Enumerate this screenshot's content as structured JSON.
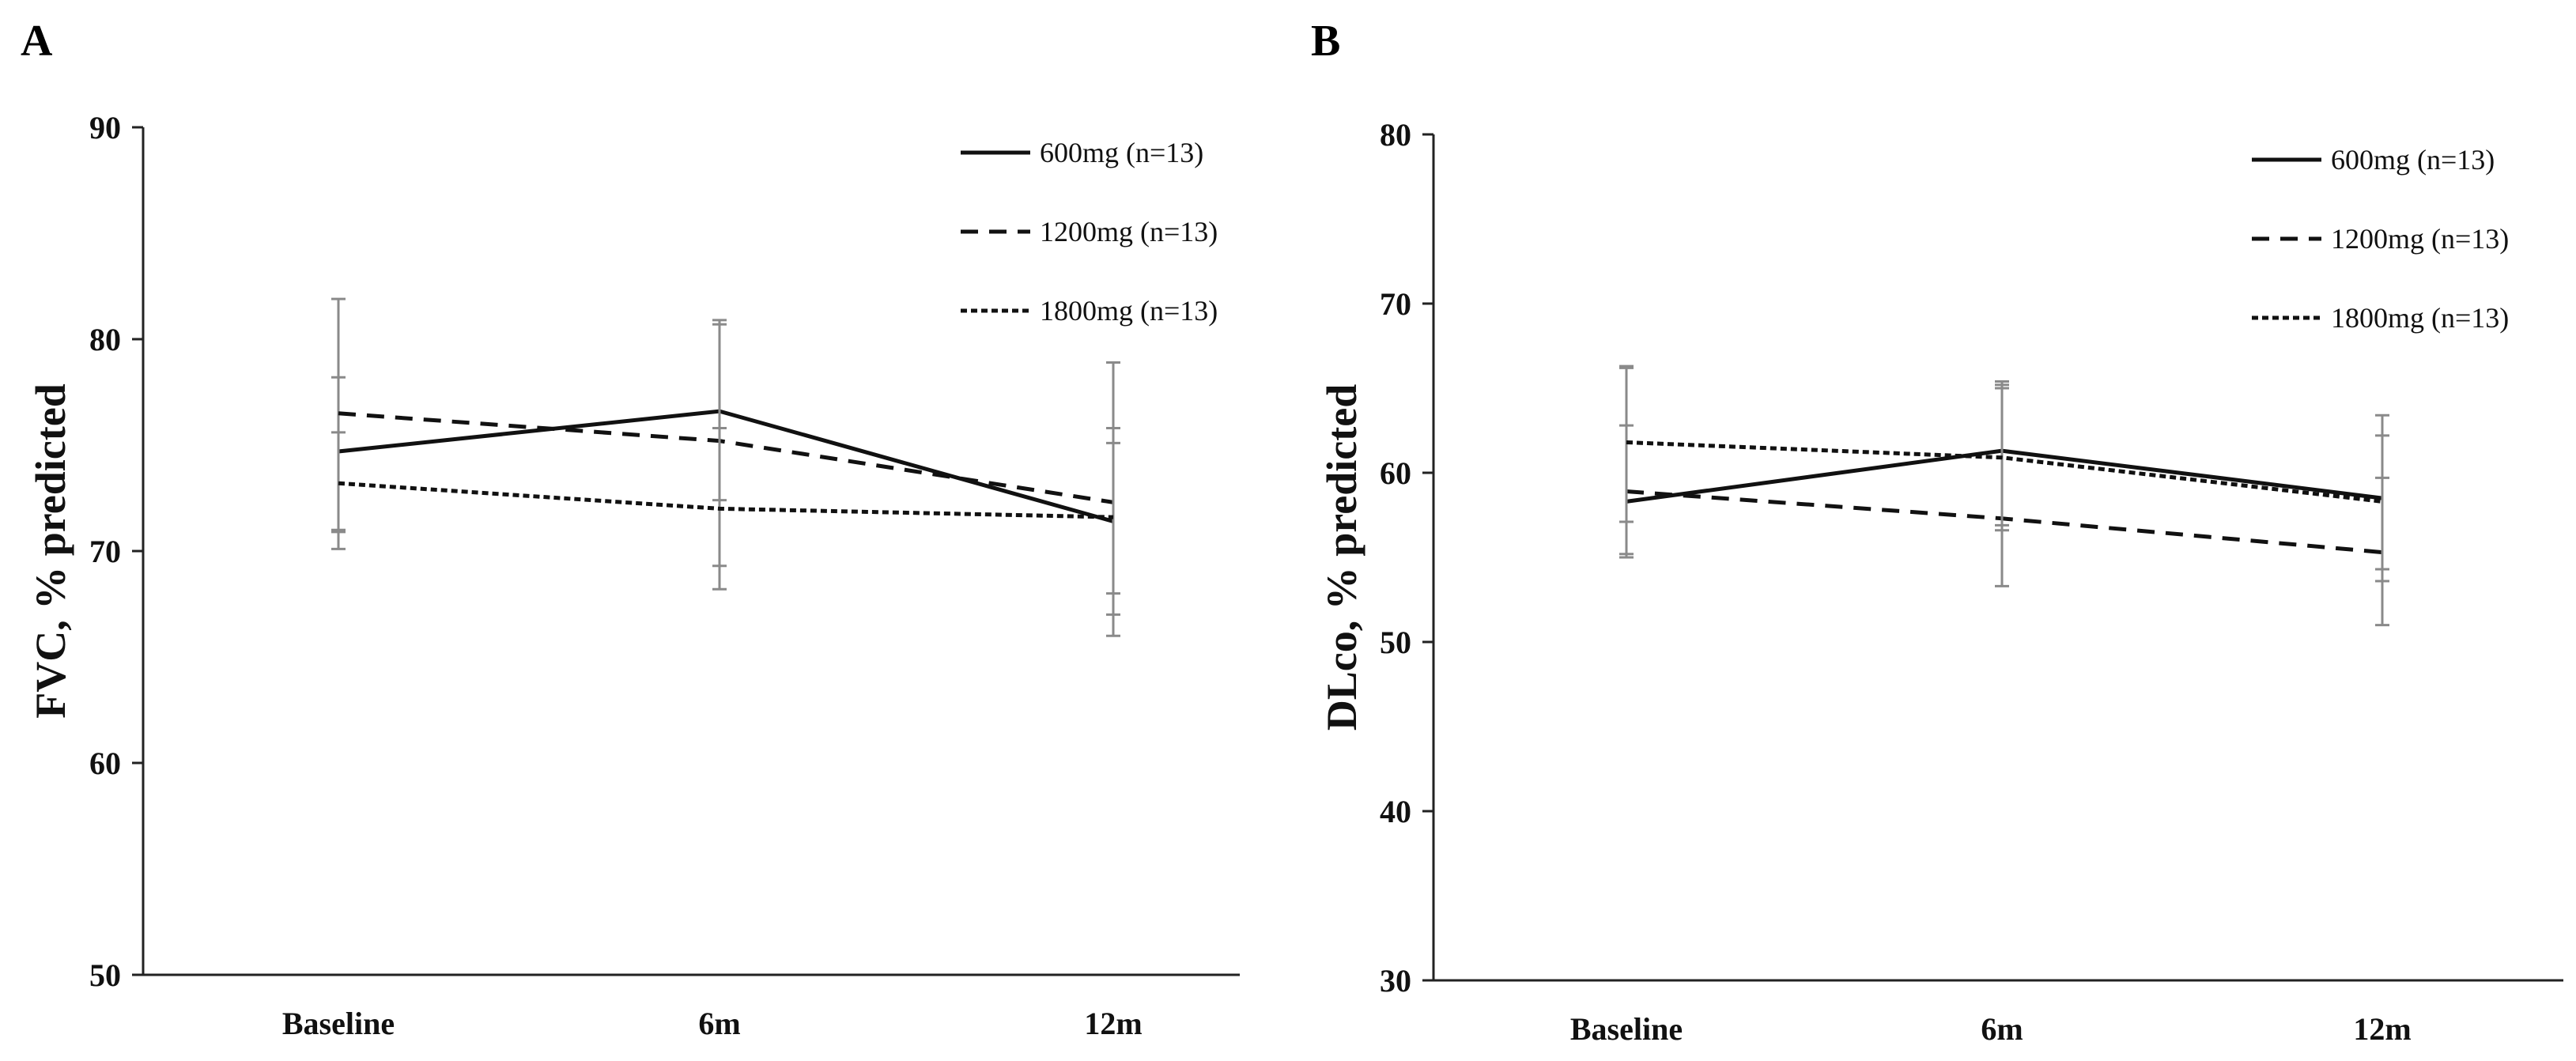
{
  "chart_data": [
    {
      "panel": "A",
      "type": "line",
      "title": "",
      "xlabel": "",
      "ylabel": "FVC, % predicted",
      "ylim": [
        50,
        90
      ],
      "yticks": [
        "50",
        "60",
        "70",
        "80",
        "90"
      ],
      "categories": [
        "Baseline",
        "6m",
        "12m"
      ],
      "grid": false,
      "legend_position": "top-right",
      "series": [
        {
          "name": "600mg (n=13)",
          "style": "solid",
          "values": [
            74.7,
            76.6,
            71.4
          ],
          "err_low": [
            70.1,
            72.4,
            66.0
          ],
          "err_high": [
            81.9,
            80.9,
            75.8
          ]
        },
        {
          "name": "1200mg (n=13)",
          "style": "dashed",
          "values": [
            76.5,
            75.2,
            72.3
          ],
          "err_low": [
            71.0,
            69.3,
            67.0
          ],
          "err_high": [
            78.2,
            80.7,
            78.9
          ]
        },
        {
          "name": "1800mg (n=13)",
          "style": "dotted",
          "values": [
            73.2,
            72.0,
            71.6
          ],
          "err_low": [
            70.9,
            68.2,
            68.0
          ],
          "err_high": [
            75.6,
            75.8,
            75.1
          ]
        }
      ]
    },
    {
      "panel": "B",
      "type": "line",
      "title": "",
      "xlabel": "",
      "ylabel": "DLco, % predicted",
      "ylim": [
        30,
        80
      ],
      "yticks": [
        "30",
        "40",
        "50",
        "60",
        "70",
        "80"
      ],
      "categories": [
        "Baseline",
        "6m",
        "12m"
      ],
      "grid": false,
      "legend_position": "top-right",
      "series": [
        {
          "name": "600mg (n=13)",
          "style": "solid",
          "values": [
            58.3,
            61.3,
            58.5
          ],
          "err_low": [
            55.0,
            56.6,
            53.6
          ],
          "err_high": [
            66.2,
            65.4,
            63.4
          ]
        },
        {
          "name": "1200mg (n=13)",
          "style": "dashed",
          "values": [
            58.9,
            57.3,
            55.3
          ],
          "err_low": [
            55.2,
            53.3,
            51.0
          ],
          "err_high": [
            62.8,
            65.2,
            59.7
          ]
        },
        {
          "name": "1800mg (n=13)",
          "style": "dotted",
          "values": [
            61.8,
            60.9,
            58.3
          ],
          "err_low": [
            57.1,
            56.9,
            54.3
          ],
          "err_high": [
            66.3,
            65.0,
            62.2
          ]
        }
      ]
    }
  ]
}
